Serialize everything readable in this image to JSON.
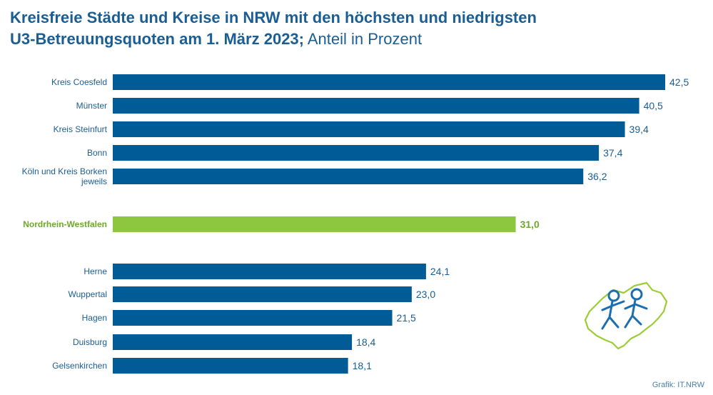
{
  "header": {
    "title_line1": "Kreisfreie Städte und Kreise in NRW mit den höchsten und niedrigsten",
    "title_line2_bold": "U3-Betreuungsquoten am 1. März 2023;",
    "title_line2_light": " Anteil in Prozent"
  },
  "colors": {
    "bar": "#005b96",
    "highlight": "#8dc63f",
    "title": "#1b5e93"
  },
  "icon": "nrw-map-children-icon",
  "credit": "Grafik: IT.NRW",
  "chart_data": {
    "type": "bar",
    "orientation": "horizontal",
    "categories": [
      [
        "Kreis Coesfeld"
      ],
      [
        "Münster"
      ],
      [
        "Kreis Steinfurt"
      ],
      [
        "Bonn"
      ],
      [
        "Köln und Kreis Borken",
        "jeweils"
      ],
      [
        "Nordrhein-Westfalen"
      ],
      [
        "Herne"
      ],
      [
        "Wuppertal"
      ],
      [
        "Hagen"
      ],
      [
        "Duisburg"
      ],
      [
        "Gelsenkirchen"
      ]
    ],
    "values": [
      42.5,
      40.5,
      39.4,
      37.4,
      36.2,
      31.0,
      24.1,
      23.0,
      21.5,
      18.4,
      18.1
    ],
    "value_labels": [
      "42,5",
      "40,5",
      "39,4",
      "37,4",
      "36,2",
      "31,0",
      "24,1",
      "23,0",
      "21,5",
      "18,4",
      "18,1"
    ],
    "highlight_index": 5,
    "xlim": [
      0,
      42.5
    ],
    "grid": false,
    "legend": "none"
  }
}
